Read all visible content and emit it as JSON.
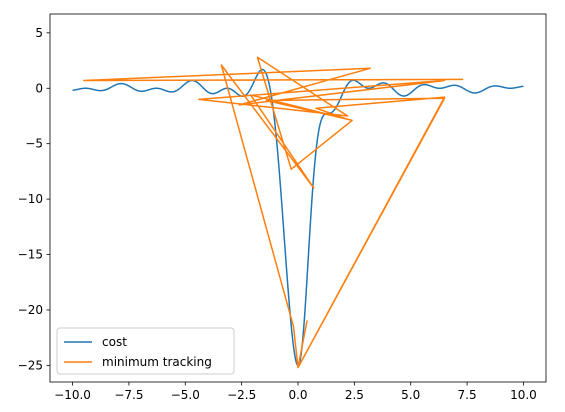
{
  "chart_data": {
    "type": "line",
    "title": "",
    "xlabel": "",
    "ylabel": "",
    "xlim": [
      -11,
      11
    ],
    "ylim": [
      -26.5,
      6.7
    ],
    "xticks": [
      -10.0,
      -7.5,
      -5.0,
      -2.5,
      0.0,
      2.5,
      5.0,
      7.5,
      10.0
    ],
    "xtick_labels": [
      "−10.0",
      "−7.5",
      "−5.0",
      "−2.5",
      "0.0",
      "2.5",
      "5.0",
      "7.5",
      "10.0"
    ],
    "yticks": [
      5,
      0,
      -5,
      -10,
      -15,
      -20,
      -25
    ],
    "ytick_labels": [
      "5",
      "0",
      "−5",
      "−10",
      "−15",
      "−20",
      "−25"
    ],
    "grid": false,
    "legend_position": "lower-left",
    "colors": {
      "cost": "#1f77b4",
      "tracking": "#ff7f0e"
    },
    "series": [
      {
        "name": "cost",
        "function": "10*x*sin(x)*sin(3x)/(3x^2+1) - 25*exp(-2x^2)",
        "x_range": [
          -10,
          10
        ]
      },
      {
        "name": "minimum tracking",
        "x": [
          -9.5,
          7.3,
          -9.5,
          3.2,
          -2.6,
          6.5,
          -4.4,
          2.2,
          -1.8,
          -0.3,
          2.4,
          -2.1,
          0.7,
          -3.4,
          -0.2,
          0.0,
          0.4,
          0.0,
          6.5,
          -1.4,
          2.2,
          0.8,
          6.5,
          0.0
        ],
        "y": [
          0.7,
          0.8,
          0.7,
          1.8,
          -1.5,
          0.7,
          -1.0,
          -2.5,
          2.8,
          -7.3,
          -2.9,
          -0.6,
          -9.0,
          2.1,
          -21.5,
          -25.2,
          -21.0,
          -25.2,
          -0.9,
          -1.1,
          -2.8,
          -1.8,
          -0.8,
          -25.2
        ]
      }
    ]
  }
}
